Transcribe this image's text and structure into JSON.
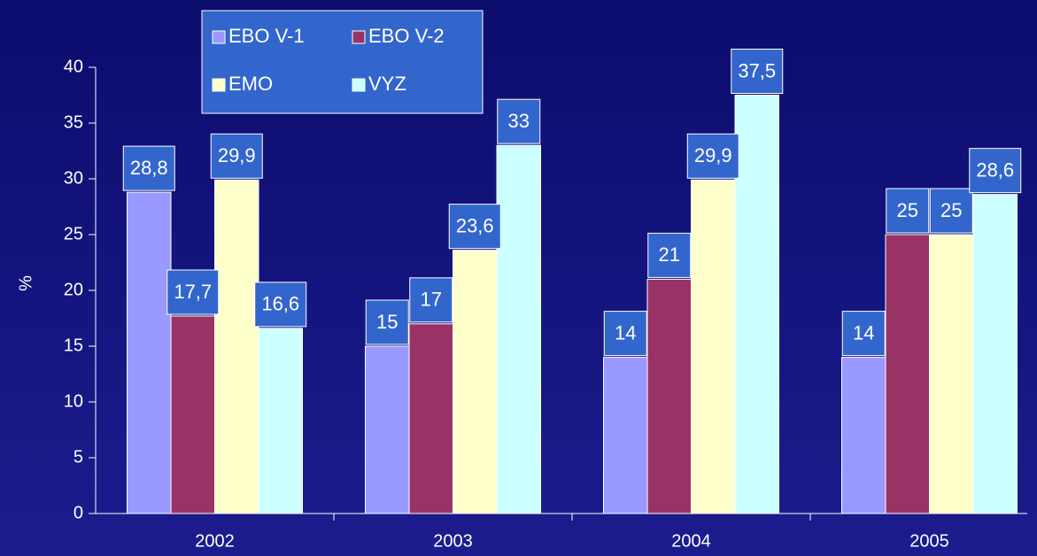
{
  "chart_data": {
    "type": "bar",
    "y_label": "%",
    "categories": [
      "2002",
      "2003",
      "2004",
      "2005"
    ],
    "series": [
      {
        "name": "EBO V-1",
        "color": "#9999ff",
        "values": [
          28.8,
          15,
          14,
          14
        ],
        "value_labels": [
          "28,8",
          "15",
          "14",
          "14"
        ]
      },
      {
        "name": "EBO V-2",
        "color": "#993366",
        "values": [
          17.7,
          17,
          21,
          25
        ],
        "value_labels": [
          "17,7",
          "17",
          "21",
          "25"
        ]
      },
      {
        "name": "EMO",
        "color": "#ffffcc",
        "values": [
          29.9,
          23.6,
          29.9,
          25
        ],
        "value_labels": [
          "29,9",
          "23,6",
          "29,9",
          "25"
        ]
      },
      {
        "name": "VYZ",
        "color": "#ccffff",
        "values": [
          16.6,
          33,
          37.5,
          28.6
        ],
        "value_labels": [
          "16,6",
          "33",
          "37,5",
          "28,6"
        ]
      }
    ],
    "ylim": [
      0,
      40
    ],
    "yticks": [
      0,
      5,
      10,
      15,
      20,
      25,
      30,
      35,
      40
    ],
    "legend": "top"
  }
}
